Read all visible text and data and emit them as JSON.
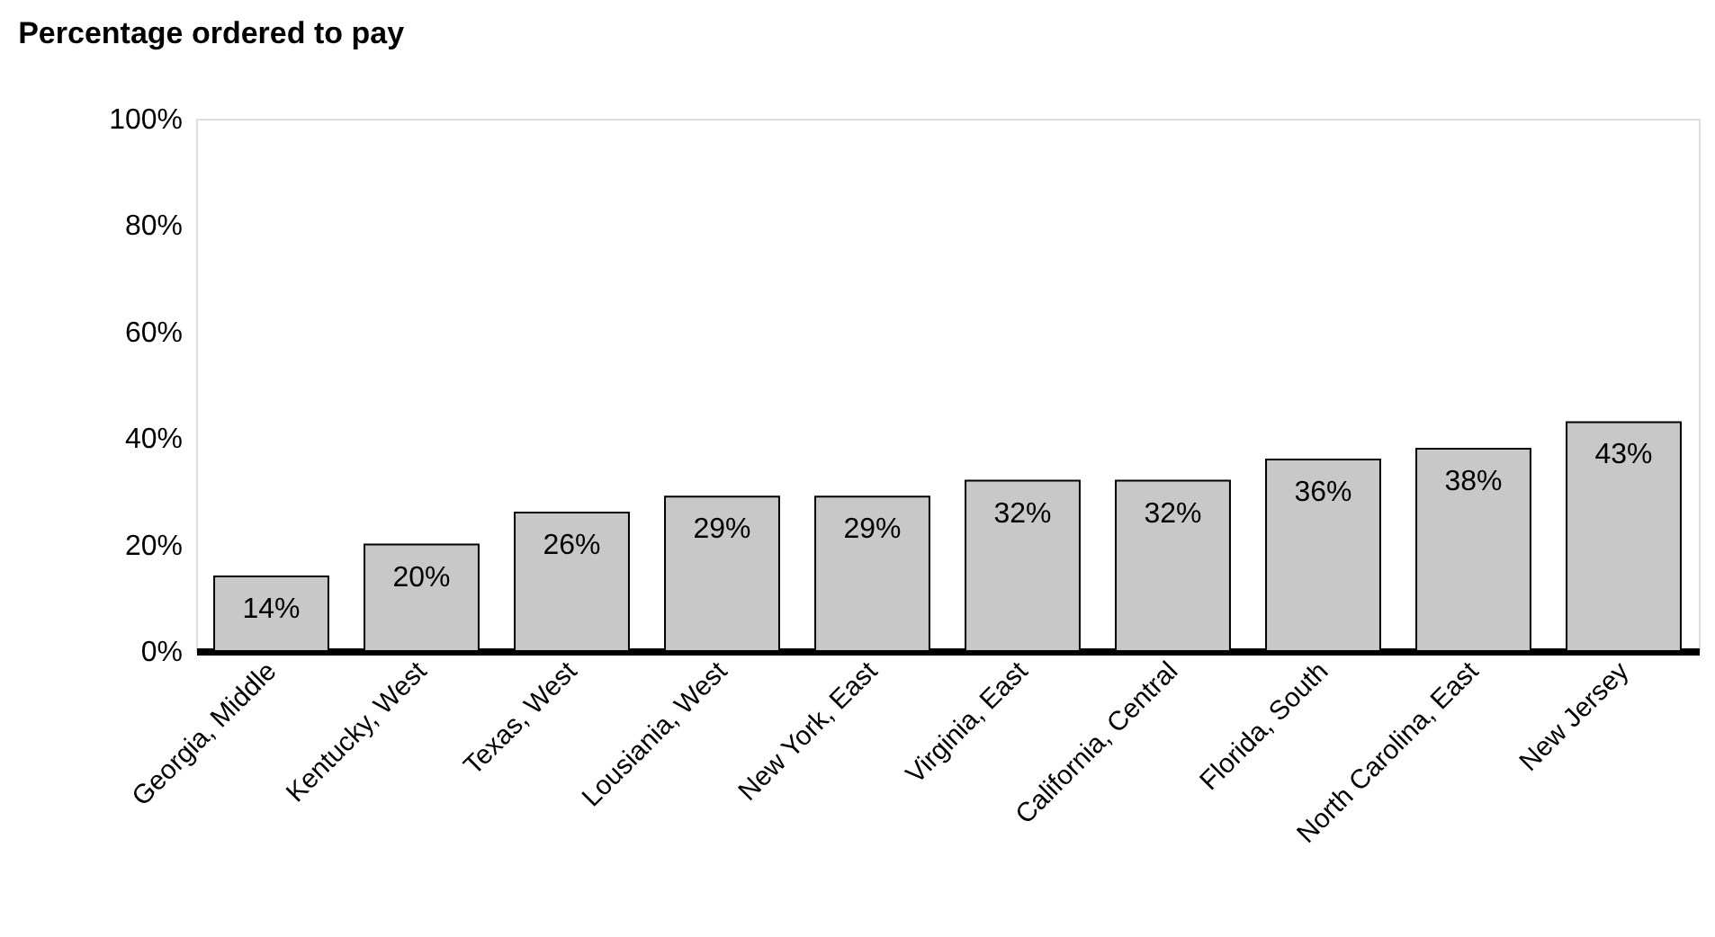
{
  "chart_data": {
    "type": "bar",
    "title": "Percentage ordered to pay",
    "categories": [
      "Georgia, Middle",
      "Kentucky, West",
      "Texas, West",
      "Lousiania, West",
      "New York, East",
      "Virginia, East",
      "California, Central",
      "Florida, South",
      "North Carolina, East",
      "New Jersey"
    ],
    "values": [
      14,
      20,
      26,
      29,
      29,
      32,
      32,
      36,
      38,
      43
    ],
    "color": "#c8c8c8",
    "value_labels": [
      "14%",
      "20%",
      "26%",
      "29%",
      "29%",
      "32%",
      "32%",
      "36%",
      "38%",
      "43%"
    ],
    "ylim": [
      0,
      100
    ],
    "yticks": [
      {
        "value": 0,
        "label": "0%"
      },
      {
        "value": 20,
        "label": "20%"
      },
      {
        "value": 40,
        "label": "40%"
      },
      {
        "value": 60,
        "label": "60%"
      },
      {
        "value": 80,
        "label": "80%"
      },
      {
        "value": 100,
        "label": "100%"
      }
    ],
    "grid": false
  }
}
